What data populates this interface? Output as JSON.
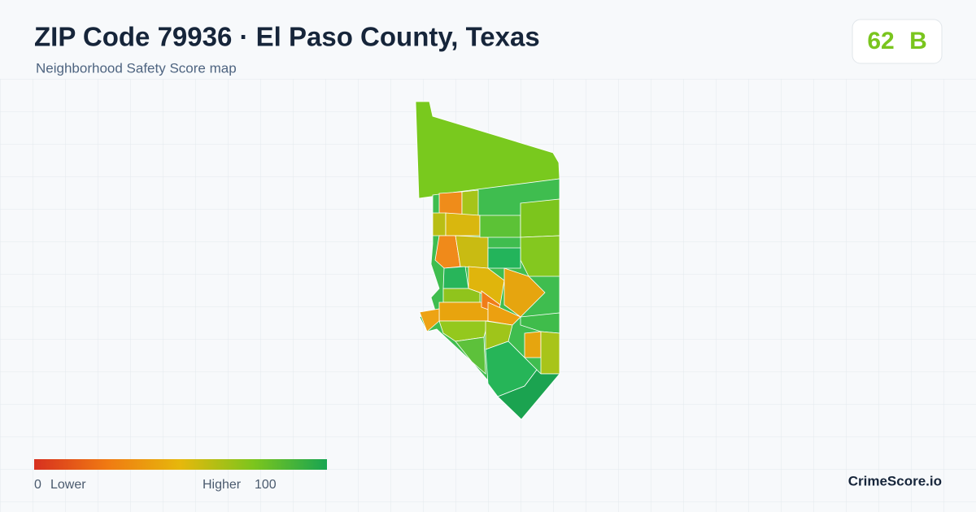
{
  "header": {
    "title": "ZIP Code 79936 · El Paso County, Texas",
    "subtitle": "Neighborhood Safety Score map"
  },
  "score": {
    "value": "62",
    "grade": "B"
  },
  "legend": {
    "min": "0",
    "min_label": "Lower",
    "max_label": "Higher",
    "max": "100"
  },
  "brand": "CrimeScore.io"
}
